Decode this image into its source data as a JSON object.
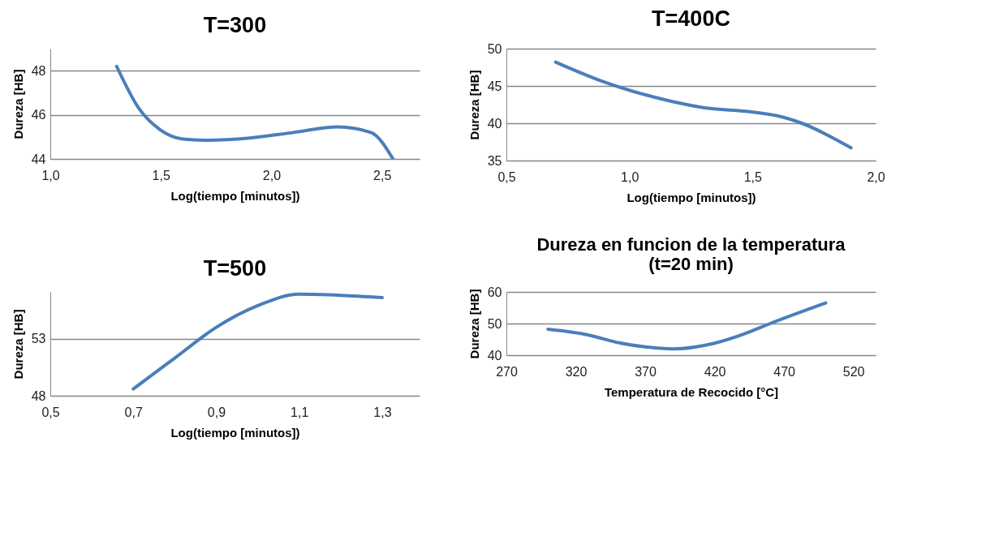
{
  "chart_data": [
    {
      "type": "line",
      "title": "T=300",
      "xlabel": "Log(tiempo [minutos])",
      "ylabel": "Dureza [HB]",
      "color": "#4a7ebb",
      "grid": "y",
      "x": [
        1.3,
        1.4,
        1.5,
        1.6,
        1.7,
        1.9,
        2.1,
        2.3,
        2.45,
        2.55
      ],
      "values": [
        48.2,
        46.3,
        45.3,
        44.9,
        44.85,
        44.95,
        45.2,
        45.45,
        45.2,
        44.0
      ],
      "xlim": [
        1.0,
        2.67
      ],
      "xticks": [
        {
          "value": 1.0,
          "label": "1,0"
        },
        {
          "value": 1.5,
          "label": "1,5"
        },
        {
          "value": 2.0,
          "label": "2,0"
        },
        {
          "value": 2.5,
          "label": "2,5"
        }
      ],
      "ylim": [
        44,
        49
      ],
      "yticks": [
        44,
        46,
        48
      ]
    },
    {
      "type": "line",
      "title": "T=400C",
      "xlabel": "Log(tiempo [minutos])",
      "ylabel": "Dureza [HB]",
      "color": "#4a7ebb",
      "grid": "y",
      "x": [
        0.7,
        0.9,
        1.1,
        1.3,
        1.5,
        1.6,
        1.7,
        1.9
      ],
      "values": [
        48.2,
        45.5,
        43.5,
        42.1,
        41.5,
        41.0,
        40.0,
        36.7
      ],
      "xlim": [
        0.5,
        2.0
      ],
      "xticks": [
        {
          "value": 0.5,
          "label": "0,5"
        },
        {
          "value": 1.0,
          "label": "1,0"
        },
        {
          "value": 1.5,
          "label": "1,5"
        },
        {
          "value": 2.0,
          "label": "2,0"
        }
      ],
      "ylim": [
        35,
        50
      ],
      "yticks": [
        35,
        40,
        45,
        50
      ]
    },
    {
      "type": "line",
      "title": "T=500",
      "xlabel": "Log(tiempo [minutos])",
      "ylabel": "Dureza [HB]",
      "color": "#4a7ebb",
      "grid": "y",
      "x": [
        0.7,
        0.8,
        0.9,
        1.0,
        1.1,
        1.2,
        1.3
      ],
      "values": [
        48.6,
        51.3,
        54.0,
        55.9,
        56.9,
        56.8,
        56.6
      ],
      "xlim": [
        0.5,
        1.39
      ],
      "xticks": [
        {
          "value": 0.5,
          "label": "0,5"
        },
        {
          "value": 0.7,
          "label": "0,7"
        },
        {
          "value": 0.9,
          "label": "0,9"
        },
        {
          "value": 1.1,
          "label": "1,1"
        },
        {
          "value": 1.3,
          "label": "1,3"
        }
      ],
      "ylim": [
        48,
        57.1
      ],
      "yticks": [
        48,
        53
      ]
    },
    {
      "type": "line",
      "title": "Dureza en funcion de la temperatura\n(t=20 min)",
      "xlabel": "Temperatura de Recocido [°C]",
      "ylabel": "Dureza [HB]",
      "color": "#4a7ebb",
      "grid": "y",
      "x": [
        300,
        330,
        350,
        370,
        390,
        420,
        440,
        460,
        500
      ],
      "values": [
        48.2,
        46.3,
        44.0,
        42.6,
        42.0,
        43.8,
        46.5,
        50.0,
        56.5
      ],
      "xlim": [
        270,
        536
      ],
      "xticks": [
        270,
        320,
        370,
        420,
        470,
        520
      ],
      "ylim": [
        40,
        60
      ],
      "yticks": [
        40,
        50,
        60
      ]
    }
  ]
}
